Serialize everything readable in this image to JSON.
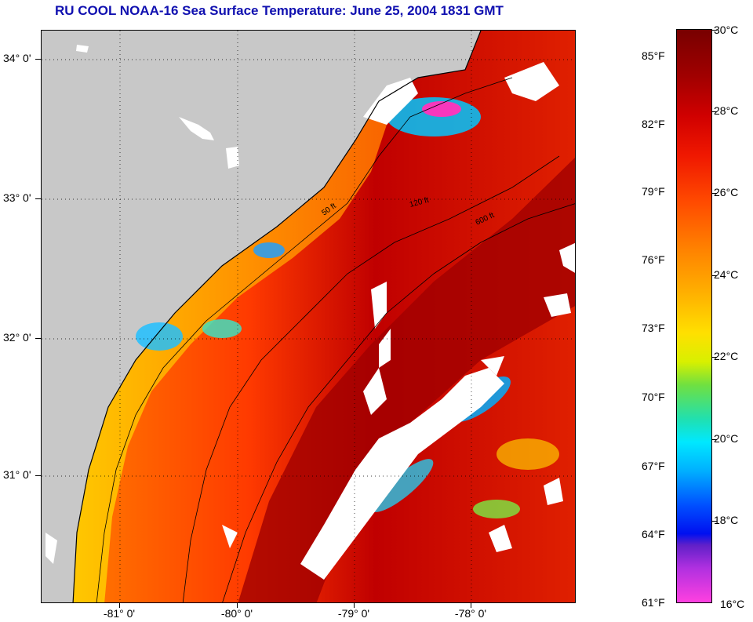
{
  "title": "RU COOL  NOAA-16  Sea Surface Temperature:  June 25, 2004 1831 GMT",
  "map": {
    "latitude_labels": [
      "34° 0'",
      "33° 0'",
      "32° 0'",
      "31° 0'"
    ],
    "longitude_labels": [
      "-81° 0'",
      "-80° 0'",
      "-79° 0'",
      "-78° 0'"
    ],
    "contour_labels": [
      "50 ft",
      "120 ft",
      "600 ft"
    ],
    "land_color": "#c8c8c8",
    "cloud_color": "#ffffff"
  },
  "colorbar": {
    "fahrenheit_labels": [
      "85°F",
      "82°F",
      "79°F",
      "76°F",
      "73°F",
      "70°F",
      "67°F",
      "64°F",
      "61°F"
    ],
    "celsius_labels": [
      "30°C",
      "28°C",
      "26°C",
      "24°C",
      "22°C",
      "20°C",
      "18°C",
      "16°C"
    ],
    "max_color": "#780000",
    "min_color": "#ff40e0"
  }
}
